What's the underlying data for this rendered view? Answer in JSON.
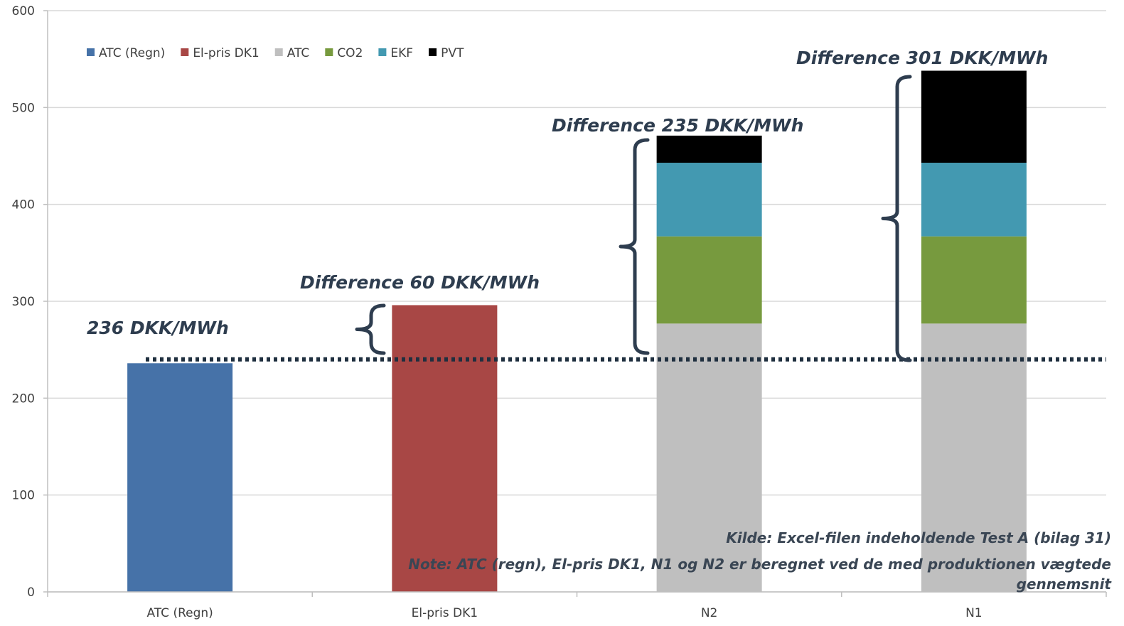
{
  "chart_data": {
    "type": "bar",
    "stacked": true,
    "categories": [
      "ATC (Regn)",
      "El-pris DK1",
      "N2",
      "N1"
    ],
    "series": [
      {
        "name": "ATC (Regn)",
        "color": "#4672a8",
        "values": [
          236,
          0,
          0,
          0
        ]
      },
      {
        "name": "El-pris DK1",
        "color": "#a84745",
        "values": [
          0,
          296,
          0,
          0
        ]
      },
      {
        "name": "ATC",
        "color": "#bfbfbf",
        "values": [
          0,
          0,
          277,
          277
        ]
      },
      {
        "name": "CO2",
        "color": "#779a3e",
        "values": [
          0,
          0,
          90,
          90
        ]
      },
      {
        "name": "EKF",
        "color": "#4399b1",
        "values": [
          0,
          0,
          76,
          76
        ]
      },
      {
        "name": "PVT",
        "color": "#000000",
        "values": [
          0,
          0,
          28,
          95
        ]
      }
    ],
    "ylim": [
      0,
      600
    ],
    "yticks": [
      0,
      100,
      200,
      300,
      400,
      500,
      600
    ],
    "grid": true,
    "legend_position": "top-left",
    "reference_line": {
      "value": 240,
      "style": "dotted",
      "color": "#1f2f3f"
    },
    "annotations": {
      "baseline_label": "236 DKK/MWh",
      "diff_elpris": "Difference 60 DKK/MWh",
      "diff_n2": "Difference 235 DKK/MWh",
      "diff_n1": "Difference 301 DKK/MWh"
    },
    "source_note": "Kilde: Excel-filen indeholdende Test A (bilag 31)",
    "note_line1": "Note: ATC (regn), El-pris DK1, N1 og N2 er beregnet ved de med produktionen vægtede",
    "note_line2": "gennemsnit"
  }
}
